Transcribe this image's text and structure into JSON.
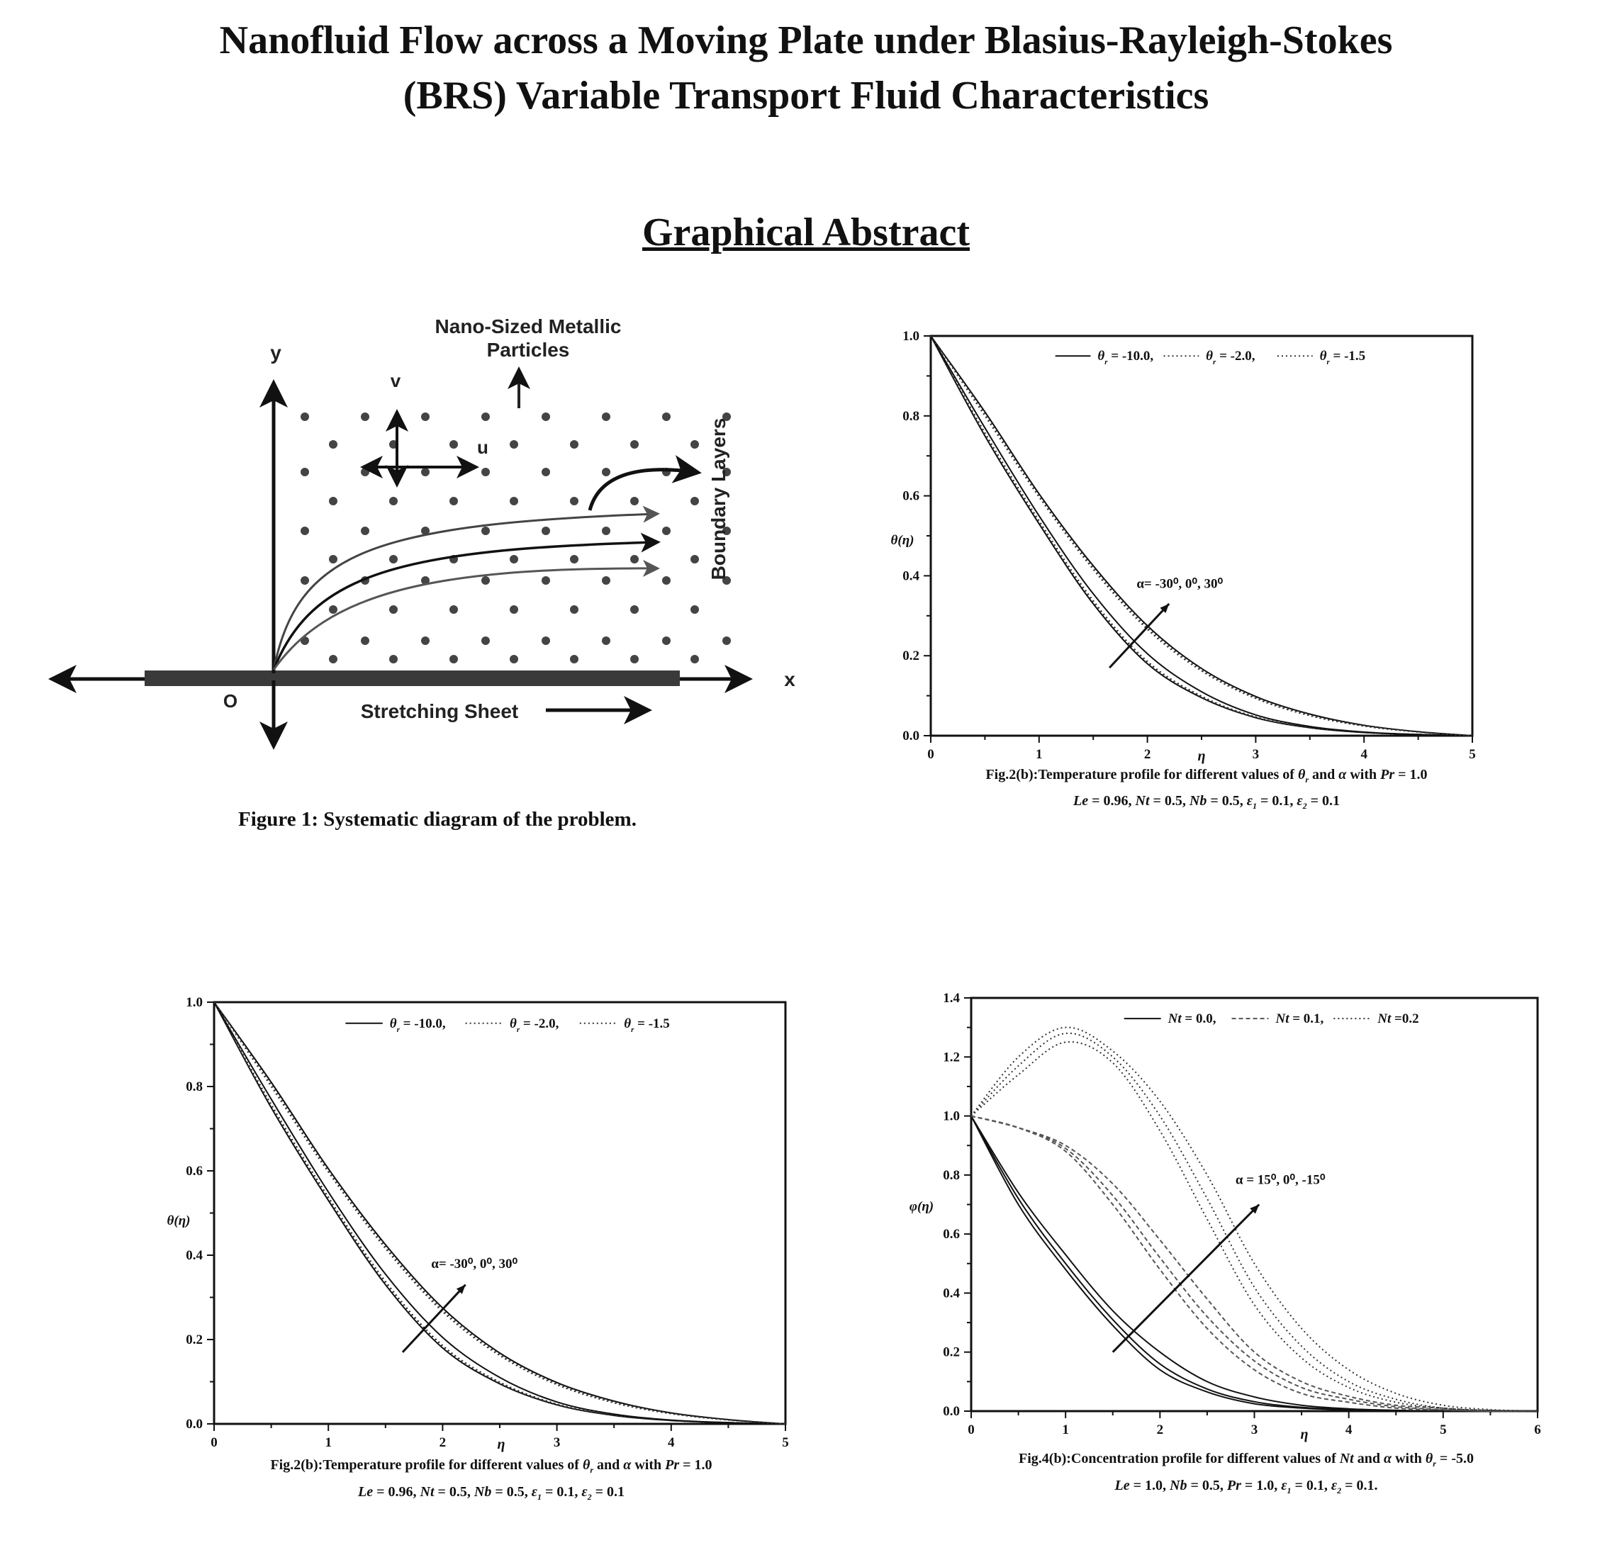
{
  "header": {
    "title_line1": "Nanofluid Flow across a Moving Plate under Blasius-Rayleigh-Stokes",
    "title_line2": "(BRS) Variable Transport Fluid Characteristics",
    "section_title": "Graphical Abstract"
  },
  "figure1": {
    "labels": {
      "y": "y",
      "x": "x",
      "origin": "O",
      "v": "v",
      "u": "u",
      "particles_line1": "Nano-Sized Metallic",
      "particles_line2": "Particles",
      "sheet": "Stretching Sheet",
      "boundary": "Boundary Layers"
    },
    "caption": "Figure 1: Systematic diagram of the problem."
  },
  "chart_data": [
    {
      "type": "line",
      "xlabel": "η",
      "ylabel": "θ(η)",
      "xlim": [
        0,
        5
      ],
      "ylim": [
        0,
        1.0
      ],
      "xticks": [
        "0",
        "1",
        "2",
        "3",
        "4",
        "5"
      ],
      "yticks": [
        "0.0",
        "0.2",
        "0.4",
        "0.6",
        "0.8",
        "1.0"
      ],
      "grid": false,
      "legend_placement": "top-center",
      "legend": [
        {
          "sym": "θ",
          "sub": "r",
          "text": " = -10.0,",
          "style": "solid"
        },
        {
          "sym": "θ",
          "sub": "r",
          "text": " = -2.0,",
          "style": "dotted"
        },
        {
          "sym": "θ",
          "sub": "r",
          "text": " = -1.5",
          "style": "dotted"
        }
      ],
      "annotation": {
        "text": "α= -30⁰, 0⁰, 30⁰",
        "arrow_from": [
          1.65,
          0.17
        ],
        "arrow_to": [
          2.2,
          0.33
        ],
        "text_at": [
          1.9,
          0.37
        ]
      },
      "x": [
        0,
        0.5,
        1,
        1.5,
        2,
        2.5,
        3,
        3.5,
        4,
        4.5,
        5
      ],
      "series": [
        {
          "style": "solid",
          "values": [
            1,
            0.75,
            0.53,
            0.33,
            0.18,
            0.095,
            0.045,
            0.02,
            0.008,
            0.003,
            0
          ]
        },
        {
          "style": "dotted",
          "values": [
            1,
            0.755,
            0.535,
            0.335,
            0.183,
            0.097,
            0.046,
            0.02,
            0.008,
            0.003,
            0
          ]
        },
        {
          "style": "dotted",
          "values": [
            1,
            0.758,
            0.538,
            0.338,
            0.186,
            0.099,
            0.047,
            0.021,
            0.008,
            0.003,
            0
          ]
        },
        {
          "style": "solid",
          "values": [
            1,
            0.77,
            0.55,
            0.355,
            0.205,
            0.11,
            0.052,
            0.023,
            0.009,
            0.003,
            0
          ]
        },
        {
          "style": "solid",
          "values": [
            1,
            0.81,
            0.605,
            0.425,
            0.275,
            0.168,
            0.098,
            0.054,
            0.026,
            0.01,
            0
          ]
        },
        {
          "style": "dotted",
          "values": [
            1,
            0.805,
            0.6,
            0.42,
            0.27,
            0.165,
            0.095,
            0.052,
            0.025,
            0.01,
            0
          ]
        },
        {
          "style": "dotted",
          "values": [
            1,
            0.8,
            0.597,
            0.416,
            0.266,
            0.162,
            0.093,
            0.05,
            0.024,
            0.009,
            0
          ]
        }
      ],
      "caption_lines": [
        [
          {
            "t": "Fig.2(b):Temperature profile for different values of "
          },
          {
            "t": "θ",
            "i": 1
          },
          {
            "t": "r",
            "sub": 1
          },
          {
            "t": " and "
          },
          {
            "t": "α",
            "i": 1
          },
          {
            "t": " with "
          },
          {
            "t": "Pr",
            "i": 1
          },
          {
            "t": " = 1.0"
          }
        ],
        [
          {
            "t": "Le",
            "i": 1
          },
          {
            "t": " = 0.96, "
          },
          {
            "t": "Nt",
            "i": 1
          },
          {
            "t": " = 0.5, "
          },
          {
            "t": "Nb",
            "i": 1
          },
          {
            "t": " = 0.5, "
          },
          {
            "t": "ε",
            "i": 1
          },
          {
            "t": "1",
            "sub": 1
          },
          {
            "t": " = 0.1, "
          },
          {
            "t": "ε",
            "i": 1
          },
          {
            "t": "2",
            "sub": 1
          },
          {
            "t": " = 0.1"
          }
        ]
      ]
    },
    {
      "type": "line",
      "xlabel": "η",
      "ylabel": "θ(η)",
      "xlim": [
        0,
        5
      ],
      "ylim": [
        0,
        1.0
      ],
      "xticks": [
        "0",
        "1",
        "2",
        "3",
        "4",
        "5"
      ],
      "yticks": [
        "0.0",
        "0.2",
        "0.4",
        "0.6",
        "0.8",
        "1.0"
      ],
      "grid": false,
      "legend_placement": "top-center",
      "legend": [
        {
          "sym": "θ",
          "sub": "r",
          "text": " = -10.0,",
          "style": "solid"
        },
        {
          "sym": "θ",
          "sub": "r",
          "text": " = -2.0,",
          "style": "dotted"
        },
        {
          "sym": "θ",
          "sub": "r",
          "text": " = -1.5",
          "style": "dotted"
        }
      ],
      "annotation": {
        "text": "α= -30⁰, 0⁰, 30⁰",
        "arrow_from": [
          1.65,
          0.17
        ],
        "arrow_to": [
          2.2,
          0.33
        ],
        "text_at": [
          1.9,
          0.37
        ]
      },
      "x": [
        0,
        0.5,
        1,
        1.5,
        2,
        2.5,
        3,
        3.5,
        4,
        4.5,
        5
      ],
      "series": [
        {
          "style": "solid",
          "values": [
            1,
            0.75,
            0.53,
            0.33,
            0.18,
            0.095,
            0.045,
            0.02,
            0.008,
            0.003,
            0
          ]
        },
        {
          "style": "dotted",
          "values": [
            1,
            0.755,
            0.535,
            0.335,
            0.183,
            0.097,
            0.046,
            0.02,
            0.008,
            0.003,
            0
          ]
        },
        {
          "style": "dotted",
          "values": [
            1,
            0.758,
            0.538,
            0.338,
            0.186,
            0.099,
            0.047,
            0.021,
            0.008,
            0.003,
            0
          ]
        },
        {
          "style": "solid",
          "values": [
            1,
            0.77,
            0.55,
            0.355,
            0.205,
            0.11,
            0.052,
            0.023,
            0.009,
            0.003,
            0
          ]
        },
        {
          "style": "solid",
          "values": [
            1,
            0.81,
            0.605,
            0.425,
            0.275,
            0.168,
            0.098,
            0.054,
            0.026,
            0.01,
            0
          ]
        },
        {
          "style": "dotted",
          "values": [
            1,
            0.805,
            0.6,
            0.42,
            0.27,
            0.165,
            0.095,
            0.052,
            0.025,
            0.01,
            0
          ]
        },
        {
          "style": "dotted",
          "values": [
            1,
            0.8,
            0.597,
            0.416,
            0.266,
            0.162,
            0.093,
            0.05,
            0.024,
            0.009,
            0
          ]
        }
      ],
      "caption_lines": [
        [
          {
            "t": "Fig.2(b):Temperature profile for different values of "
          },
          {
            "t": "θ",
            "i": 1
          },
          {
            "t": "r",
            "sub": 1
          },
          {
            "t": " and "
          },
          {
            "t": "α",
            "i": 1
          },
          {
            "t": " with "
          },
          {
            "t": "Pr",
            "i": 1
          },
          {
            "t": " = 1.0"
          }
        ],
        [
          {
            "t": "Le",
            "i": 1
          },
          {
            "t": " = 0.96, "
          },
          {
            "t": "Nt",
            "i": 1
          },
          {
            "t": " = 0.5, "
          },
          {
            "t": "Nb",
            "i": 1
          },
          {
            "t": " = 0.5, "
          },
          {
            "t": "ε",
            "i": 1
          },
          {
            "t": "1",
            "sub": 1
          },
          {
            "t": " = 0.1, "
          },
          {
            "t": "ε",
            "i": 1
          },
          {
            "t": "2",
            "sub": 1
          },
          {
            "t": " = 0.1"
          }
        ]
      ]
    },
    {
      "type": "line",
      "xlabel": "η",
      "ylabel": "φ(η)",
      "xlim": [
        0,
        6
      ],
      "ylim": [
        0,
        1.4
      ],
      "xticks": [
        "0",
        "1",
        "2",
        "3",
        "4",
        "5",
        "6"
      ],
      "yticks": [
        "0.0",
        "0.2",
        "0.4",
        "0.6",
        "0.8",
        "1.0",
        "1.2",
        "1.4"
      ],
      "grid": false,
      "legend_placement": "top-center",
      "legend": [
        {
          "sym": "Nt",
          "sub": "",
          "text": " = 0.0,",
          "style": "solid"
        },
        {
          "sym": "Nt",
          "sub": "",
          "text": " = 0.1,",
          "style": "dashed"
        },
        {
          "sym": "Nt",
          "sub": "",
          "text": " =0.2",
          "style": "dotted"
        }
      ],
      "annotation": {
        "text": "α = 15⁰, 0⁰, -15⁰",
        "arrow_from": [
          1.5,
          0.2
        ],
        "arrow_to": [
          3.05,
          0.7
        ],
        "text_at": [
          2.8,
          0.77
        ]
      },
      "x": [
        0,
        0.5,
        1,
        1.5,
        2,
        2.5,
        3,
        3.5,
        4,
        4.5,
        5,
        5.5,
        6
      ],
      "series": [
        {
          "style": "solid",
          "values": [
            1,
            0.7,
            0.48,
            0.29,
            0.14,
            0.065,
            0.025,
            0.01,
            0.004,
            0.001,
            0,
            0,
            0
          ]
        },
        {
          "style": "solid",
          "values": [
            1,
            0.72,
            0.5,
            0.31,
            0.16,
            0.075,
            0.032,
            0.013,
            0.005,
            0.002,
            0,
            0,
            0
          ]
        },
        {
          "style": "solid",
          "values": [
            1,
            0.74,
            0.53,
            0.34,
            0.2,
            0.1,
            0.048,
            0.02,
            0.008,
            0.003,
            0,
            0,
            0
          ]
        },
        {
          "style": "dashed",
          "values": [
            1,
            0.96,
            0.9,
            0.77,
            0.58,
            0.38,
            0.2,
            0.1,
            0.05,
            0.02,
            0.01,
            0,
            0
          ]
        },
        {
          "style": "dashed",
          "values": [
            1,
            0.96,
            0.89,
            0.73,
            0.52,
            0.32,
            0.17,
            0.08,
            0.04,
            0.015,
            0.005,
            0,
            0
          ]
        },
        {
          "style": "dashed",
          "values": [
            1,
            0.96,
            0.88,
            0.7,
            0.48,
            0.28,
            0.14,
            0.06,
            0.03,
            0.01,
            0.004,
            0,
            0
          ]
        },
        {
          "style": "dotted",
          "values": [
            1,
            1.2,
            1.3,
            1.22,
            1.05,
            0.8,
            0.5,
            0.28,
            0.14,
            0.06,
            0.02,
            0.005,
            0
          ]
        },
        {
          "style": "dotted",
          "values": [
            1,
            1.17,
            1.28,
            1.2,
            1.0,
            0.72,
            0.42,
            0.22,
            0.1,
            0.04,
            0.01,
            0.003,
            0
          ]
        },
        {
          "style": "dotted",
          "values": [
            1,
            1.14,
            1.25,
            1.18,
            0.95,
            0.65,
            0.36,
            0.18,
            0.08,
            0.03,
            0.01,
            0.002,
            0
          ]
        }
      ],
      "caption_lines": [
        [
          {
            "t": "Fig.4(b):Concentration profile for different values of "
          },
          {
            "t": "Nt",
            "i": 1
          },
          {
            "t": " and "
          },
          {
            "t": "α",
            "i": 1
          },
          {
            "t": " with  "
          },
          {
            "t": "θ",
            "i": 1
          },
          {
            "t": "r",
            "sub": 1
          },
          {
            "t": " = -5.0"
          }
        ],
        [
          {
            "t": "Le",
            "i": 1
          },
          {
            "t": " = 1.0, "
          },
          {
            "t": "Nb",
            "i": 1
          },
          {
            "t": " = 0.5, "
          },
          {
            "t": "Pr",
            "i": 1
          },
          {
            "t": " = 1.0, "
          },
          {
            "t": "ε",
            "i": 1
          },
          {
            "t": "1",
            "sub": 1
          },
          {
            "t": " = 0.1, "
          },
          {
            "t": "ε",
            "i": 1
          },
          {
            "t": "2",
            "sub": 1
          },
          {
            "t": " = 0.1."
          }
        ]
      ]
    }
  ]
}
